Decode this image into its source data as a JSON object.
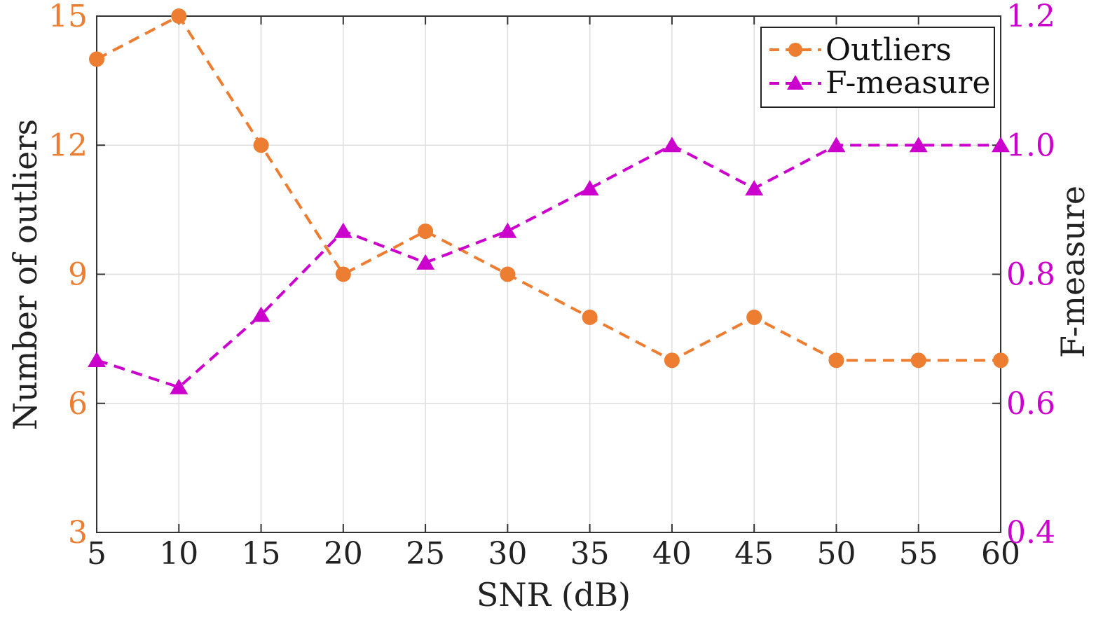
{
  "chart_data": {
    "type": "line",
    "title": "",
    "xlabel": "SNR (dB)",
    "x": [
      5,
      10,
      15,
      20,
      25,
      30,
      35,
      40,
      45,
      50,
      55,
      60
    ],
    "xlim": [
      5,
      60
    ],
    "xticks": [
      5,
      10,
      15,
      20,
      25,
      30,
      35,
      40,
      45,
      50,
      55,
      60
    ],
    "grid": true,
    "legend_position": "top-right",
    "y_left": {
      "label": "Number of outliers",
      "ylim": [
        3,
        15
      ],
      "ticks": [
        3,
        6,
        9,
        12,
        15
      ],
      "color": "#ED7D31"
    },
    "y_right": {
      "label": "F-measure",
      "ylim": [
        0.4,
        1.2
      ],
      "ticks": [
        0.4,
        0.6,
        0.8,
        1.0,
        1.2
      ],
      "tick_labels": [
        "0.4",
        "0.6",
        "0.8",
        "1.0",
        "1.2"
      ],
      "color": "#CC00CC"
    },
    "series": [
      {
        "name": "Outliers",
        "axis": "left",
        "marker": "circle",
        "line_style": "dashed",
        "color": "#ED7D31",
        "values": [
          14,
          15,
          12,
          9,
          10,
          9,
          8,
          7,
          8,
          7,
          7,
          7
        ]
      },
      {
        "name": "F-measure",
        "axis": "right",
        "marker": "triangle",
        "line_style": "dashed",
        "color": "#CC00CC",
        "values": [
          0.667,
          0.625,
          0.737,
          0.867,
          0.818,
          0.867,
          0.933,
          1.0,
          0.933,
          1.0,
          1.0,
          1.0
        ]
      }
    ]
  }
}
